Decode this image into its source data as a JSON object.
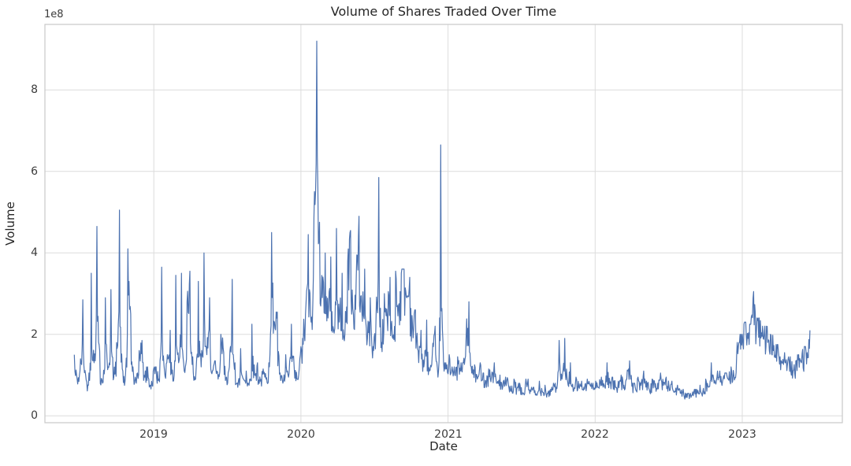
{
  "chart_data": {
    "type": "line",
    "title": "Volume of Shares Traded Over Time",
    "xlabel": "Date",
    "ylabel": "Volume",
    "y_offset_label": "1e8",
    "x_tick_values": [
      2019,
      2020,
      2021,
      2022,
      2023
    ],
    "x_tick_labels": [
      "2019",
      "2020",
      "2021",
      "2022",
      "2023"
    ],
    "y_tick_values": [
      0,
      2,
      4,
      6,
      8
    ],
    "y_tick_labels": [
      "0",
      "2",
      "4",
      "6",
      "8"
    ],
    "x_range": [
      2018.26,
      2023.68
    ],
    "y_range": [
      -0.17,
      9.61
    ],
    "grid": true,
    "legend": "none",
    "colors": {
      "line": "#4c72b0",
      "grid": "#dcdcdc",
      "spine": "#c9c9c9",
      "text": "#3b3b3b",
      "title_text": "#262626",
      "background": "#ffffff"
    },
    "series": [
      {
        "name": "Volume",
        "unit": "1e8 shares",
        "cadence": "weekly",
        "x_start": 2018.46,
        "x_end": 2023.46,
        "values": [
          1.5,
          0.9,
          1.1,
          2.85,
          1.0,
          0.75,
          3.5,
          1.3,
          4.65,
          1.6,
          0.8,
          2.9,
          1.2,
          3.1,
          0.95,
          1.8,
          5.05,
          1.15,
          0.85,
          4.1,
          2.5,
          1.0,
          0.8,
          1.6,
          1.85,
          0.95,
          1.2,
          0.75,
          1.1,
          1.2,
          0.9,
          3.65,
          1.1,
          1.5,
          2.1,
          0.85,
          3.45,
          1.3,
          3.5,
          1.1,
          2.8,
          3.55,
          1.45,
          0.9,
          3.3,
          1.2,
          4.0,
          1.5,
          2.9,
          1.1,
          1.35,
          0.9,
          2.0,
          1.55,
          0.95,
          1.2,
          3.35,
          1.3,
          0.7,
          1.65,
          0.9,
          1.1,
          0.75,
          2.25,
          1.0,
          1.3,
          0.85,
          1.15,
          0.9,
          1.3,
          4.5,
          2.3,
          2.55,
          1.05,
          0.8,
          1.5,
          0.95,
          2.25,
          1.2,
          0.9,
          1.4,
          1.9,
          2.5,
          4.45,
          2.3,
          4.85,
          9.2,
          4.75,
          2.9,
          4.0,
          2.4,
          3.9,
          2.1,
          4.6,
          2.3,
          3.5,
          2.0,
          3.8,
          4.55,
          2.5,
          3.3,
          4.9,
          2.6,
          3.6,
          1.9,
          2.9,
          1.7,
          2.3,
          5.85,
          1.8,
          3.0,
          2.4,
          3.4,
          1.9,
          3.55,
          2.7,
          3.5,
          3.6,
          2.9,
          3.4,
          2.2,
          2.6,
          1.6,
          2.1,
          1.2,
          2.35,
          1.1,
          1.5,
          2.2,
          0.95,
          6.65,
          1.3,
          1.15,
          1.5,
          1.2,
          1.0,
          1.45,
          1.1,
          1.3,
          1.9,
          2.8,
          1.05,
          1.25,
          0.9,
          1.3,
          1.05,
          0.85,
          1.15,
          0.95,
          1.3,
          0.8,
          1.0,
          0.7,
          0.95,
          0.75,
          0.6,
          0.9,
          0.65,
          0.8,
          0.55,
          0.75,
          0.9,
          0.6,
          0.7,
          0.5,
          0.85,
          0.6,
          0.75,
          0.55,
          0.65,
          0.8,
          0.7,
          1.85,
          0.9,
          1.9,
          0.85,
          1.3,
          0.6,
          0.95,
          0.7,
          0.85,
          0.65,
          0.9,
          0.75,
          0.8,
          0.85,
          0.7,
          0.95,
          0.75,
          1.3,
          0.8,
          0.95,
          0.7,
          0.85,
          1.0,
          0.75,
          0.9,
          1.35,
          0.8,
          0.7,
          0.95,
          0.75,
          1.1,
          0.85,
          0.65,
          0.9,
          0.7,
          0.8,
          1.05,
          0.75,
          0.95,
          0.7,
          0.85,
          0.6,
          0.75,
          0.55,
          0.65,
          0.45,
          0.55,
          0.5,
          0.65,
          0.55,
          0.75,
          0.6,
          0.9,
          0.7,
          1.3,
          0.8,
          0.95,
          1.1,
          0.85,
          1.05,
          0.9,
          1.2,
          1.0,
          1.5,
          1.8,
          2.0,
          2.3,
          1.9,
          2.25,
          3.05,
          2.1,
          2.4,
          1.95,
          2.2,
          1.8,
          2.0,
          1.6,
          1.75,
          1.45,
          1.3,
          1.55,
          1.25,
          1.45,
          1.1,
          1.35,
          1.5,
          1.3,
          1.7,
          1.55,
          2.1
        ]
      }
    ],
    "render_hints": {
      "upsample": 5,
      "valley_pull": 0.3,
      "noise": 0.22,
      "seed": 42,
      "min_value": 0.3,
      "line_width": 1.2
    }
  }
}
